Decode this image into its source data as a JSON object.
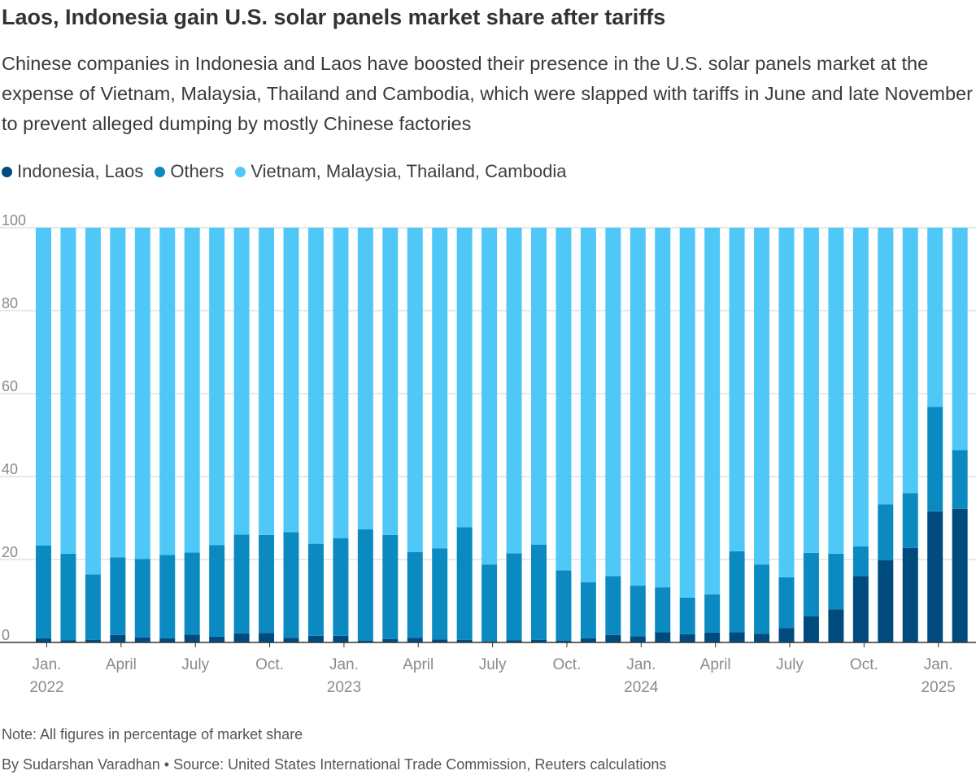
{
  "chart_data": {
    "type": "bar",
    "stacked": true,
    "title": "Laos, Indonesia gain U.S. solar panels market share after tariffs",
    "subtitle": "Chinese companies in Indonesia and Laos have boosted their presence in the U.S. solar panels market at the expense of Vietnam, Malaysia, Thailand and Cambodia, which were slapped with tariffs in June and late November to prevent alleged dumping by mostly Chinese factories",
    "ylim": [
      0,
      100
    ],
    "yticks": [
      "0",
      "20",
      "40",
      "60",
      "80",
      "100"
    ],
    "ytick_values": [
      0,
      20,
      40,
      60,
      80,
      100
    ],
    "xlabel": "",
    "ylabel": "",
    "grid": true,
    "categories": [
      "Jan 2022",
      "Feb 2022",
      "Mar 2022",
      "Apr 2022",
      "May 2022",
      "Jun 2022",
      "Jul 2022",
      "Aug 2022",
      "Sep 2022",
      "Oct 2022",
      "Nov 2022",
      "Dec 2022",
      "Jan 2023",
      "Feb 2023",
      "Mar 2023",
      "Apr 2023",
      "May 2023",
      "Jun 2023",
      "Jul 2023",
      "Aug 2023",
      "Sep 2023",
      "Oct 2023",
      "Nov 2023",
      "Dec 2023",
      "Jan 2024",
      "Feb 2024",
      "Mar 2024",
      "Apr 2024",
      "May 2024",
      "Jun 2024",
      "Jul 2024",
      "Aug 2024",
      "Sep 2024",
      "Oct 2024",
      "Nov 2024",
      "Dec 2024",
      "Jan 2025",
      "Feb 2025"
    ],
    "x_tick_labels": [
      {
        "index": 0,
        "line1": "Jan.",
        "line2": "2022"
      },
      {
        "index": 3,
        "line1": "April",
        "line2": ""
      },
      {
        "index": 6,
        "line1": "July",
        "line2": ""
      },
      {
        "index": 9,
        "line1": "Oct.",
        "line2": ""
      },
      {
        "index": 12,
        "line1": "Jan.",
        "line2": "2023"
      },
      {
        "index": 15,
        "line1": "April",
        "line2": ""
      },
      {
        "index": 18,
        "line1": "July",
        "line2": ""
      },
      {
        "index": 21,
        "line1": "Oct.",
        "line2": ""
      },
      {
        "index": 24,
        "line1": "Jan.",
        "line2": "2024"
      },
      {
        "index": 27,
        "line1": "April",
        "line2": ""
      },
      {
        "index": 30,
        "line1": "July",
        "line2": ""
      },
      {
        "index": 33,
        "line1": "Oct.",
        "line2": ""
      },
      {
        "index": 36,
        "line1": "Jan.",
        "line2": "2025"
      }
    ],
    "series": [
      {
        "name": "Indonesia, Laos",
        "color": "#004b7e",
        "values": [
          1.0,
          0.5,
          0.6,
          1.8,
          1.2,
          1.0,
          1.9,
          1.4,
          2.2,
          2.3,
          1.1,
          1.6,
          1.6,
          0.4,
          0.8,
          1.1,
          0.7,
          0.6,
          0.2,
          0.5,
          0.6,
          0.4,
          1.0,
          1.8,
          1.5,
          2.5,
          2.0,
          2.4,
          2.5,
          2.1,
          3.5,
          6.3,
          8.0,
          16.0,
          19.8,
          22.8,
          31.6,
          32.2
        ]
      },
      {
        "name": "Others",
        "color": "#0a8ac1",
        "values": [
          22.4,
          20.9,
          15.8,
          18.7,
          18.9,
          20.1,
          19.8,
          22.1,
          23.8,
          23.6,
          25.5,
          22.2,
          23.5,
          26.9,
          25.1,
          20.7,
          22.0,
          27.2,
          18.6,
          21.0,
          23.0,
          17.0,
          13.5,
          14.2,
          12.2,
          10.8,
          8.8,
          9.2,
          19.5,
          16.7,
          12.2,
          15.3,
          13.4,
          7.2,
          13.5,
          13.2,
          25.2,
          14.2
        ]
      },
      {
        "name": "Vietnam, Malaysia, Thailand, Cambodia",
        "color": "#4fc8f8",
        "values": [
          76.6,
          78.6,
          83.6,
          79.5,
          79.9,
          78.9,
          78.3,
          76.5,
          74.0,
          74.1,
          73.4,
          76.2,
          74.9,
          72.7,
          74.1,
          78.2,
          77.3,
          72.2,
          81.2,
          78.5,
          76.4,
          82.6,
          85.5,
          84.0,
          86.3,
          86.7,
          89.2,
          88.4,
          78.0,
          81.2,
          84.3,
          78.4,
          78.6,
          76.8,
          66.7,
          64.0,
          43.2,
          53.6
        ]
      }
    ]
  },
  "notes": {
    "note": "Note: All figures in percentage of market share",
    "byline": "By Sudarshan Varadhan • Source: United States International Trade Commission, Reuters calculations"
  }
}
